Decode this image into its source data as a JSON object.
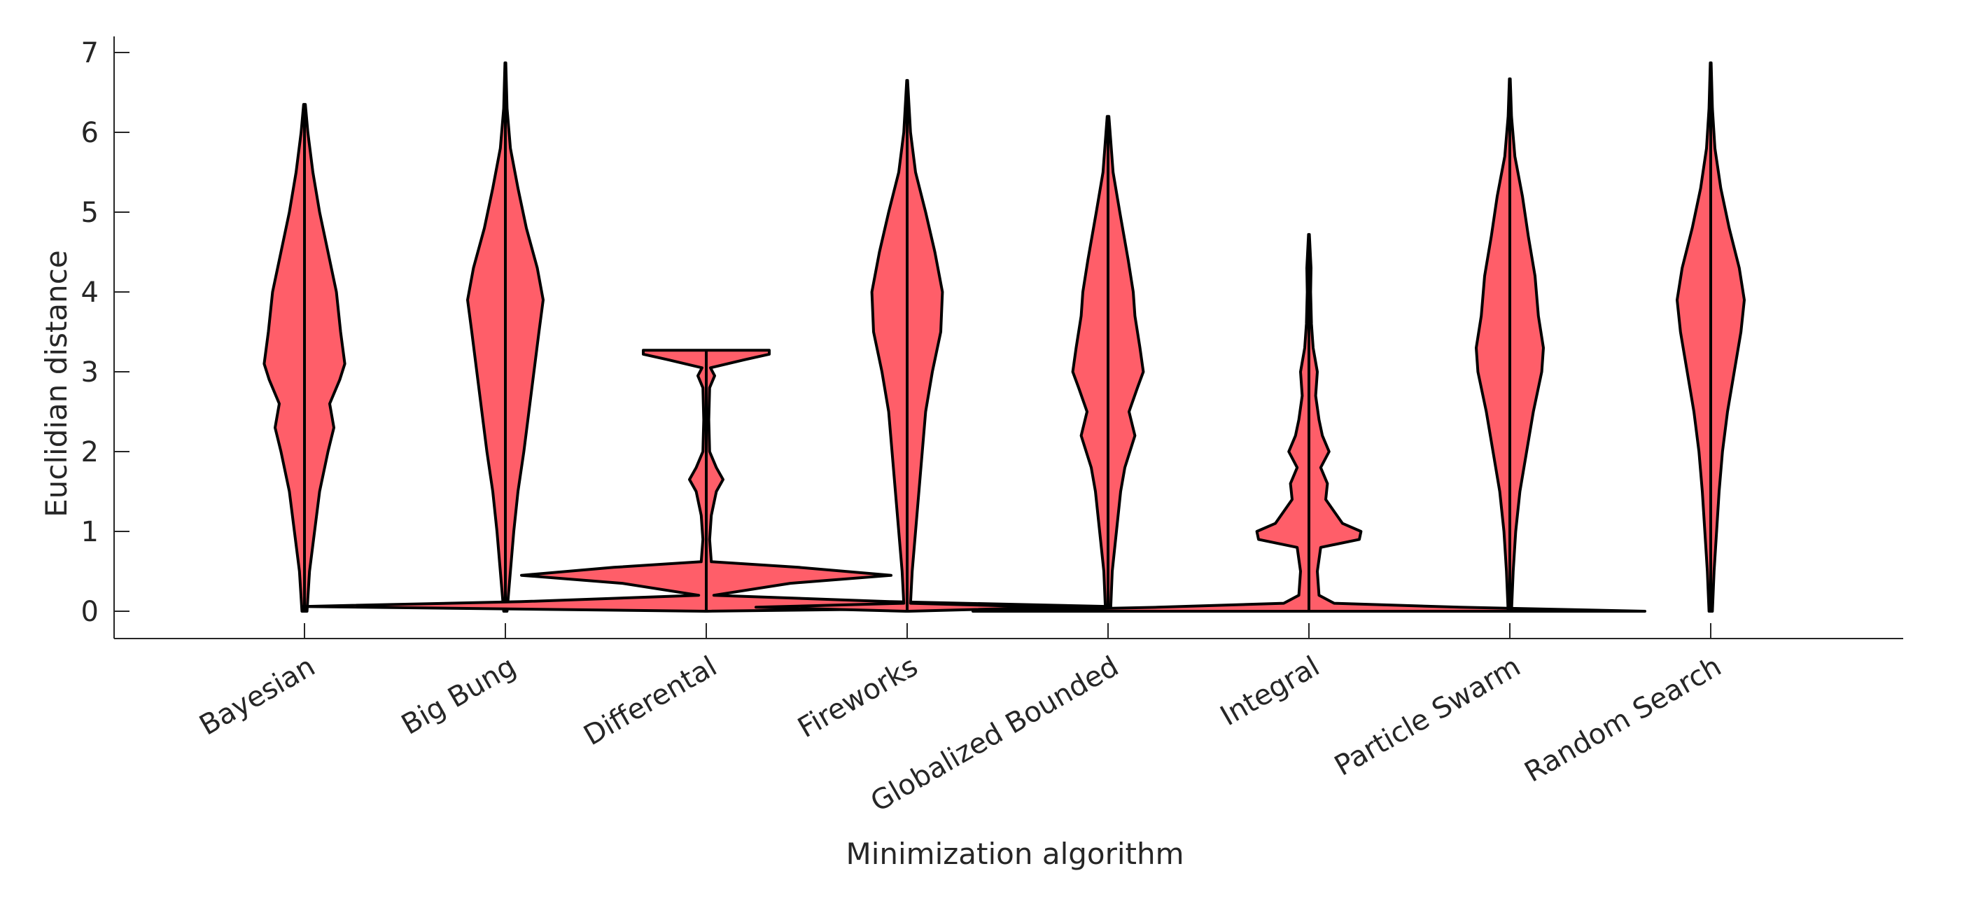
{
  "chart_data": {
    "type": "violin",
    "xlabel": "Minimization algorithm",
    "ylabel": "Euclidian distance",
    "ylim": [
      -0.35,
      7.2
    ],
    "yticks": [
      0,
      1,
      2,
      3,
      4,
      5,
      6,
      7
    ],
    "grid": false,
    "fill_color": "#ff5e69",
    "edge_color": "#000000",
    "categories": [
      "Bayesian",
      "Big Bung",
      "Differental",
      "Fireworks",
      "Globalized Bounded",
      "Integral",
      "Particle Swarm",
      "Random Search"
    ],
    "series": [
      {
        "min": 0.0,
        "max": 6.35,
        "profile": [
          [
            0.0,
            0.03
          ],
          [
            0.5,
            0.06
          ],
          [
            1.0,
            0.12
          ],
          [
            1.5,
            0.18
          ],
          [
            2.0,
            0.28
          ],
          [
            2.3,
            0.35
          ],
          [
            2.6,
            0.3
          ],
          [
            2.9,
            0.42
          ],
          [
            3.1,
            0.48
          ],
          [
            3.5,
            0.43
          ],
          [
            4.0,
            0.38
          ],
          [
            4.4,
            0.3
          ],
          [
            5.0,
            0.18
          ],
          [
            5.5,
            0.1
          ],
          [
            6.0,
            0.04
          ],
          [
            6.35,
            0.01
          ]
        ]
      },
      {
        "min": 0.0,
        "max": 6.87,
        "profile": [
          [
            0.0,
            0.02
          ],
          [
            0.5,
            0.06
          ],
          [
            1.0,
            0.1
          ],
          [
            1.5,
            0.15
          ],
          [
            2.0,
            0.22
          ],
          [
            2.5,
            0.28
          ],
          [
            3.0,
            0.34
          ],
          [
            3.5,
            0.4
          ],
          [
            3.9,
            0.45
          ],
          [
            4.3,
            0.38
          ],
          [
            4.8,
            0.25
          ],
          [
            5.3,
            0.15
          ],
          [
            5.8,
            0.06
          ],
          [
            6.3,
            0.02
          ],
          [
            6.87,
            0.005
          ]
        ]
      },
      {
        "min": 0.0,
        "max": 3.27,
        "profile": [
          [
            0.0,
            0.01
          ],
          [
            0.06,
            4.8
          ],
          [
            0.12,
            2.2
          ],
          [
            0.2,
            0.09
          ],
          [
            0.35,
            1.0
          ],
          [
            0.45,
            2.2
          ],
          [
            0.55,
            1.1
          ],
          [
            0.62,
            0.06
          ],
          [
            0.9,
            0.04
          ],
          [
            1.2,
            0.06
          ],
          [
            1.5,
            0.12
          ],
          [
            1.65,
            0.2
          ],
          [
            1.8,
            0.12
          ],
          [
            2.0,
            0.04
          ],
          [
            2.4,
            0.03
          ],
          [
            2.8,
            0.04
          ],
          [
            2.95,
            0.1
          ],
          [
            3.05,
            0.05
          ],
          [
            3.15,
            0.45
          ],
          [
            3.22,
            0.75
          ],
          [
            3.27,
            0.75
          ]
        ]
      },
      {
        "min": 0.0,
        "max": 6.65,
        "profile": [
          [
            0.0,
            0.02
          ],
          [
            0.05,
            1.8
          ],
          [
            0.1,
            0.04
          ],
          [
            0.5,
            0.06
          ],
          [
            1.0,
            0.1
          ],
          [
            2.0,
            0.18
          ],
          [
            2.5,
            0.22
          ],
          [
            3.0,
            0.3
          ],
          [
            3.5,
            0.4
          ],
          [
            4.0,
            0.42
          ],
          [
            4.5,
            0.33
          ],
          [
            5.0,
            0.22
          ],
          [
            5.5,
            0.1
          ],
          [
            6.0,
            0.04
          ],
          [
            6.65,
            0.005
          ]
        ]
      },
      {
        "min": 0.0,
        "max": 6.2,
        "profile": [
          [
            0.0,
            0.03
          ],
          [
            0.5,
            0.05
          ],
          [
            1.0,
            0.1
          ],
          [
            1.5,
            0.15
          ],
          [
            1.8,
            0.2
          ],
          [
            2.2,
            0.32
          ],
          [
            2.5,
            0.25
          ],
          [
            2.8,
            0.35
          ],
          [
            3.0,
            0.42
          ],
          [
            3.3,
            0.38
          ],
          [
            3.7,
            0.32
          ],
          [
            4.0,
            0.3
          ],
          [
            4.4,
            0.24
          ],
          [
            5.0,
            0.14
          ],
          [
            5.5,
            0.06
          ],
          [
            6.2,
            0.01
          ]
        ]
      },
      {
        "min": 0.0,
        "max": 4.72,
        "profile": [
          [
            0.0,
            4.0
          ],
          [
            0.05,
            1.8
          ],
          [
            0.1,
            0.3
          ],
          [
            0.2,
            0.12
          ],
          [
            0.5,
            0.1
          ],
          [
            0.8,
            0.14
          ],
          [
            0.9,
            0.6
          ],
          [
            1.0,
            0.62
          ],
          [
            1.1,
            0.4
          ],
          [
            1.25,
            0.3
          ],
          [
            1.4,
            0.2
          ],
          [
            1.6,
            0.22
          ],
          [
            1.8,
            0.14
          ],
          [
            2.0,
            0.24
          ],
          [
            2.2,
            0.16
          ],
          [
            2.4,
            0.12
          ],
          [
            2.7,
            0.08
          ],
          [
            3.0,
            0.1
          ],
          [
            3.3,
            0.05
          ],
          [
            3.6,
            0.03
          ],
          [
            4.0,
            0.02
          ],
          [
            4.3,
            0.025
          ],
          [
            4.72,
            0.005
          ]
        ]
      },
      {
        "min": 0.0,
        "max": 6.67,
        "profile": [
          [
            0.0,
            0.02
          ],
          [
            0.5,
            0.04
          ],
          [
            1.0,
            0.07
          ],
          [
            1.5,
            0.12
          ],
          [
            2.0,
            0.2
          ],
          [
            2.5,
            0.28
          ],
          [
            3.0,
            0.38
          ],
          [
            3.3,
            0.4
          ],
          [
            3.7,
            0.34
          ],
          [
            4.2,
            0.3
          ],
          [
            4.7,
            0.22
          ],
          [
            5.2,
            0.15
          ],
          [
            5.7,
            0.06
          ],
          [
            6.2,
            0.02
          ],
          [
            6.67,
            0.005
          ]
        ]
      },
      {
        "min": 0.0,
        "max": 6.87,
        "profile": [
          [
            0.0,
            0.02
          ],
          [
            0.5,
            0.04
          ],
          [
            1.0,
            0.07
          ],
          [
            1.5,
            0.1
          ],
          [
            2.0,
            0.14
          ],
          [
            2.5,
            0.2
          ],
          [
            3.0,
            0.28
          ],
          [
            3.5,
            0.36
          ],
          [
            3.9,
            0.4
          ],
          [
            4.3,
            0.34
          ],
          [
            4.8,
            0.22
          ],
          [
            5.3,
            0.12
          ],
          [
            5.8,
            0.05
          ],
          [
            6.3,
            0.02
          ],
          [
            6.87,
            0.005
          ]
        ]
      }
    ]
  }
}
